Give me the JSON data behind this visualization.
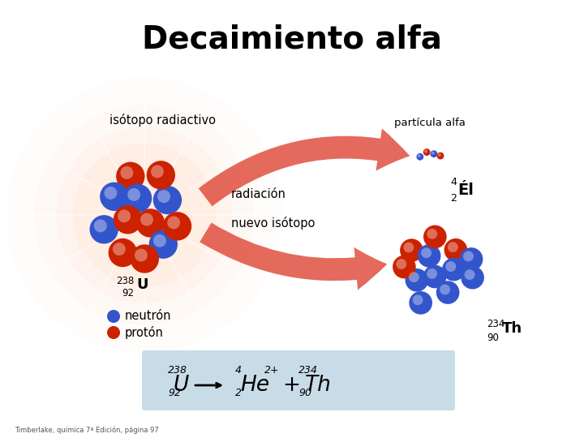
{
  "title": "Decaimiento alfa",
  "title_fontsize": 28,
  "background_color": "#ffffff",
  "labels": {
    "isotopo_radiactivo": "isótopo radiactivo",
    "radiacion": "radiación",
    "nuevo_isotopo": "nuevo isótopo",
    "particula_alfa": "partícula alfa",
    "neutron": "neutrón",
    "proton": "protón",
    "U238_mass": "238",
    "U238_atomic": "92",
    "U_symbol": "U",
    "He4_mass": "4",
    "He4_atomic": "2",
    "He_symbol": "Él",
    "Th234_mass": "234",
    "Th234_atomic": "90",
    "Th_symbol": "Th",
    "footer": "Timberlake, química 7ª Edición, página 97"
  },
  "neutron_color": "#3355cc",
  "proton_color": "#cc2200",
  "arrow_color": "#e05040",
  "text_color": "#000000",
  "eq_box_color": "#c8dce8"
}
